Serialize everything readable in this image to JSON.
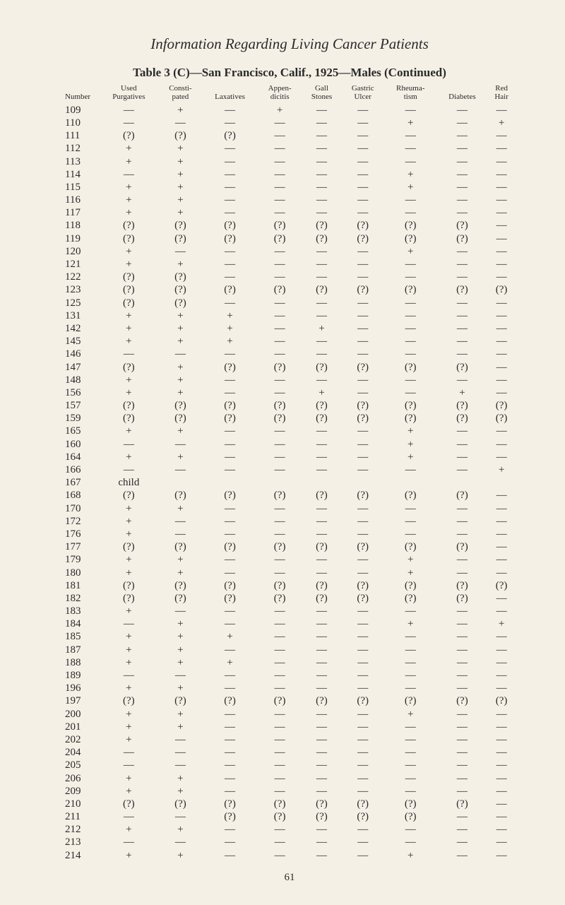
{
  "runningHead": "Information Regarding Living Cancer Patients",
  "tableTitle": "Table 3 (C)—San Francisco, Calif., 1925—Males (Continued)",
  "pageNumber": "61",
  "columns": [
    "Number",
    "Used\nPurgatives",
    "Consti-\npated",
    "Laxatives",
    "Appen-\ndicitis",
    "Gall\nStones",
    "Gastric\nUlcer",
    "Rheuma-\ntism",
    "Diabetes",
    "Red\nHair"
  ],
  "rows": [
    [
      "109",
      "—",
      "+",
      "—",
      "+",
      "—",
      "—",
      "—",
      "—",
      "—"
    ],
    [
      "110",
      "—",
      "—",
      "—",
      "—",
      "—",
      "—",
      "+",
      "—",
      "+"
    ],
    [
      "111",
      "(?)",
      "(?)",
      "(?)",
      "—",
      "—",
      "—",
      "—",
      "—",
      "—"
    ],
    [
      "112",
      "+",
      "+",
      "—",
      "—",
      "—",
      "—",
      "—",
      "—",
      "—"
    ],
    [
      "113",
      "+",
      "+",
      "—",
      "—",
      "—",
      "—",
      "—",
      "—",
      "—"
    ],
    [
      "114",
      "—",
      "+",
      "—",
      "—",
      "—",
      "—",
      "+",
      "—",
      "—"
    ],
    [
      "115",
      "+",
      "+",
      "—",
      "—",
      "—",
      "—",
      "+",
      "—",
      "—"
    ],
    [
      "116",
      "+",
      "+",
      "—",
      "—",
      "—",
      "—",
      "—",
      "—",
      "—"
    ],
    [
      "117",
      "+",
      "+",
      "—",
      "—",
      "—",
      "—",
      "—",
      "—",
      "—"
    ],
    [
      "118",
      "(?)",
      "(?)",
      "(?)",
      "(?)",
      "(?)",
      "(?)",
      "(?)",
      "(?)",
      "—"
    ],
    [
      "119",
      "(?)",
      "(?)",
      "(?)",
      "(?)",
      "(?)",
      "(?)",
      "(?)",
      "(?)",
      "—"
    ],
    [
      "120",
      "+",
      "—",
      "—",
      "—",
      "—",
      "—",
      "+",
      "—",
      "—"
    ],
    [
      "121",
      "+",
      "+",
      "—",
      "—",
      "—",
      "—",
      "—",
      "—",
      "—"
    ],
    [
      "122",
      "(?)",
      "(?)",
      "—",
      "—",
      "—",
      "—",
      "—",
      "—",
      "—"
    ],
    [
      "123",
      "(?)",
      "(?)",
      "(?)",
      "(?)",
      "(?)",
      "(?)",
      "(?)",
      "(?)",
      "(?)"
    ],
    [
      "125",
      "(?)",
      "(?)",
      "—",
      "—",
      "—",
      "—",
      "—",
      "—",
      "—"
    ],
    [
      "131",
      "+",
      "+",
      "+",
      "—",
      "—",
      "—",
      "—",
      "—",
      "—"
    ],
    [
      "142",
      "+",
      "+",
      "+",
      "—",
      "+",
      "—",
      "—",
      "—",
      "—"
    ],
    [
      "145",
      "+",
      "+",
      "+",
      "—",
      "—",
      "—",
      "—",
      "—",
      "—"
    ],
    [
      "146",
      "—",
      "—",
      "—",
      "—",
      "—",
      "—",
      "—",
      "—",
      "—"
    ],
    [
      "147",
      "(?)",
      "+",
      "(?)",
      "(?)",
      "(?)",
      "(?)",
      "(?)",
      "(?)",
      "—"
    ],
    [
      "148",
      "+",
      "+",
      "—",
      "—",
      "—",
      "—",
      "—",
      "—",
      "—"
    ],
    [
      "156",
      "+",
      "+",
      "—",
      "—",
      "+",
      "—",
      "—",
      "+",
      "—"
    ],
    [
      "157",
      "(?)",
      "(?)",
      "(?)",
      "(?)",
      "(?)",
      "(?)",
      "(?)",
      "(?)",
      "(?)"
    ],
    [
      "159",
      "(?)",
      "(?)",
      "(?)",
      "(?)",
      "(?)",
      "(?)",
      "(?)",
      "(?)",
      "(?)"
    ],
    [
      "165",
      "+",
      "+",
      "—",
      "—",
      "—",
      "—",
      "+",
      "—",
      "—"
    ],
    [
      "160",
      "—",
      "—",
      "—",
      "—",
      "—",
      "—",
      "+",
      "—",
      "—"
    ],
    [
      "164",
      "+",
      "+",
      "—",
      "—",
      "—",
      "—",
      "+",
      "—",
      "—"
    ],
    [
      "166",
      "—",
      "—",
      "—",
      "—",
      "—",
      "—",
      "—",
      "—",
      "+"
    ],
    [
      "167",
      "child",
      "",
      "",
      "",
      "",
      "",
      "",
      "",
      ""
    ],
    [
      "168",
      "(?)",
      "(?)",
      "(?)",
      "(?)",
      "(?)",
      "(?)",
      "(?)",
      "(?)",
      "—"
    ],
    [
      "170",
      "+",
      "+",
      "—",
      "—",
      "—",
      "—",
      "—",
      "—",
      "—"
    ],
    [
      "172",
      "+",
      "—",
      "—",
      "—",
      "—",
      "—",
      "—",
      "—",
      "—"
    ],
    [
      "176",
      "+",
      "—",
      "—",
      "—",
      "—",
      "—",
      "—",
      "—",
      "—"
    ],
    [
      "177",
      "(?)",
      "(?)",
      "(?)",
      "(?)",
      "(?)",
      "(?)",
      "(?)",
      "(?)",
      "—"
    ],
    [
      "179",
      "+",
      "+",
      "—",
      "—",
      "—",
      "—",
      "+",
      "—",
      "—"
    ],
    [
      "180",
      "+",
      "+",
      "—",
      "—",
      "—",
      "—",
      "+",
      "—",
      "—"
    ],
    [
      "181",
      "(?)",
      "(?)",
      "(?)",
      "(?)",
      "(?)",
      "(?)",
      "(?)",
      "(?)",
      "(?)"
    ],
    [
      "182",
      "(?)",
      "(?)",
      "(?)",
      "(?)",
      "(?)",
      "(?)",
      "(?)",
      "(?)",
      "—"
    ],
    [
      "183",
      "+",
      "—",
      "—",
      "—",
      "—",
      "—",
      "—",
      "—",
      "—"
    ],
    [
      "184",
      "—",
      "+",
      "—",
      "—",
      "—",
      "—",
      "+",
      "—",
      "+"
    ],
    [
      "185",
      "+",
      "+",
      "+",
      "—",
      "—",
      "—",
      "—",
      "—",
      "—"
    ],
    [
      "187",
      "+",
      "+",
      "—",
      "—",
      "—",
      "—",
      "—",
      "—",
      "—"
    ],
    [
      "188",
      "+",
      "+",
      "+",
      "—",
      "—",
      "—",
      "—",
      "—",
      "—"
    ],
    [
      "189",
      "—",
      "—",
      "—",
      "—",
      "—",
      "—",
      "—",
      "—",
      "—"
    ],
    [
      "196",
      "+",
      "+",
      "—",
      "—",
      "—",
      "—",
      "—",
      "—",
      "—"
    ],
    [
      "197",
      "(?)",
      "(?)",
      "(?)",
      "(?)",
      "(?)",
      "(?)",
      "(?)",
      "(?)",
      "(?)"
    ],
    [
      "200",
      "+",
      "+",
      "—",
      "—",
      "—",
      "—",
      "+",
      "—",
      "—"
    ],
    [
      "201",
      "+",
      "+",
      "—",
      "—",
      "—",
      "—",
      "—",
      "—",
      "—"
    ],
    [
      "202",
      "+",
      "—",
      "—",
      "—",
      "—",
      "—",
      "—",
      "—",
      "—"
    ],
    [
      "204",
      "—",
      "—",
      "—",
      "—",
      "—",
      "—",
      "—",
      "—",
      "—"
    ],
    [
      "205",
      "—",
      "—",
      "—",
      "—",
      "—",
      "—",
      "—",
      "—",
      "—"
    ],
    [
      "206",
      "+",
      "+",
      "—",
      "—",
      "—",
      "—",
      "—",
      "—",
      "—"
    ],
    [
      "209",
      "+",
      "+",
      "—",
      "—",
      "—",
      "—",
      "—",
      "—",
      "—"
    ],
    [
      "210",
      "(?)",
      "(?)",
      "(?)",
      "(?)",
      "(?)",
      "(?)",
      "(?)",
      "(?)",
      "—"
    ],
    [
      "211",
      "—",
      "—",
      "(?)",
      "(?)",
      "(?)",
      "(?)",
      "(?)",
      "—",
      "—"
    ],
    [
      "212",
      "+",
      "+",
      "—",
      "—",
      "—",
      "—",
      "—",
      "—",
      "—"
    ],
    [
      "213",
      "—",
      "—",
      "—",
      "—",
      "—",
      "—",
      "—",
      "—",
      "—"
    ],
    [
      "214",
      "+",
      "+",
      "—",
      "—",
      "—",
      "—",
      "+",
      "—",
      "—"
    ]
  ]
}
